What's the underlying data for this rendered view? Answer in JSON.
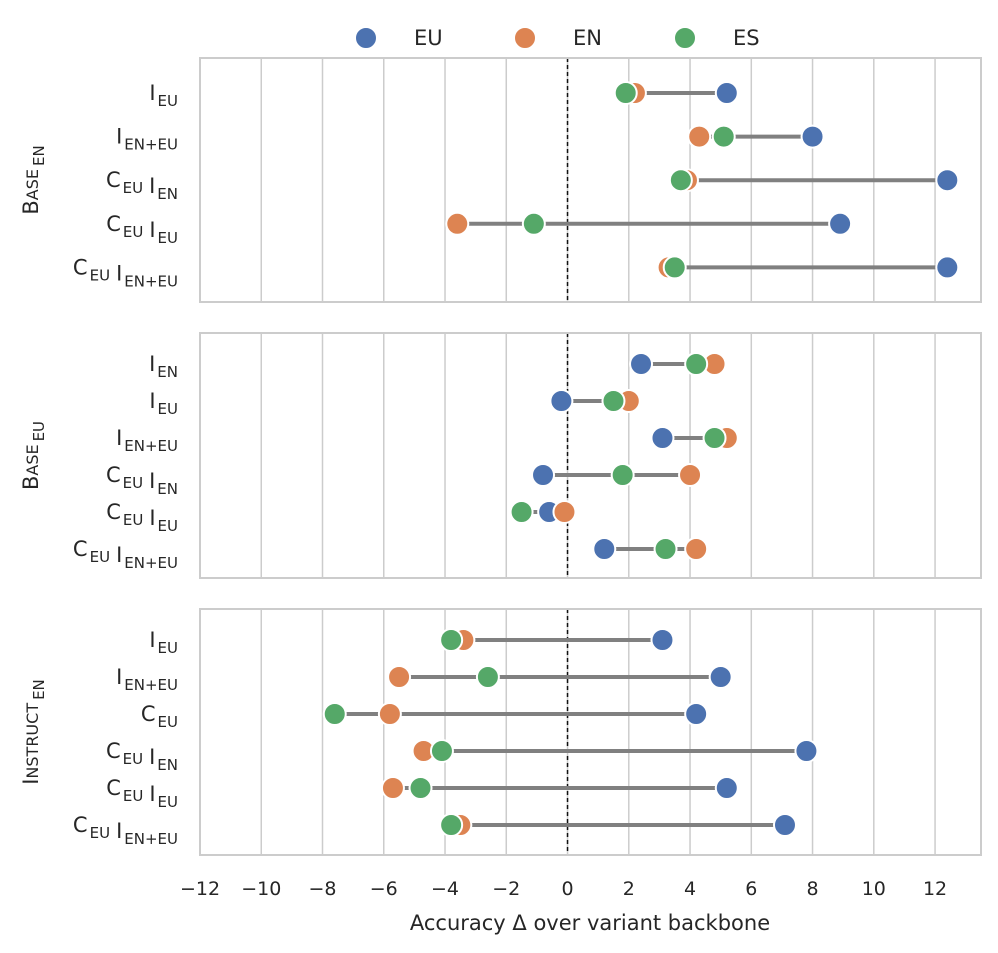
{
  "chart_data": {
    "type": "dumbbell",
    "xlabel": "Accuracy Δ over variant backbone",
    "xlim": [
      -12,
      13.5
    ],
    "xticks": [
      -12,
      -10,
      -8,
      -6,
      -4,
      -2,
      0,
      2,
      4,
      6,
      8,
      10,
      12
    ],
    "xtick_labels": [
      "−12",
      "−10",
      "−8",
      "−6",
      "−4",
      "−2",
      "0",
      "2",
      "4",
      "6",
      "8",
      "10",
      "12"
    ],
    "reference_line": 0,
    "legend": [
      {
        "name": "EU",
        "color": "#4c72b0"
      },
      {
        "name": "EN",
        "color": "#dd8452"
      },
      {
        "name": "ES",
        "color": "#55a868"
      }
    ],
    "panels": [
      {
        "ylabel": {
          "main": "Base",
          "sub": "EN"
        },
        "rows": [
          {
            "label": [
              {
                "m": "I",
                "s": "EU"
              }
            ],
            "EU": 5.2,
            "EN": 2.2,
            "ES": 1.9
          },
          {
            "label": [
              {
                "m": "I",
                "s": "EN+EU"
              }
            ],
            "EU": 8.0,
            "EN": 4.3,
            "ES": 5.1
          },
          {
            "label": [
              {
                "m": "C",
                "s": "EU"
              },
              {
                "m": "I",
                "s": "EN"
              }
            ],
            "EU": 12.4,
            "EN": 3.9,
            "ES": 3.7
          },
          {
            "label": [
              {
                "m": "C",
                "s": "EU"
              },
              {
                "m": "I",
                "s": "EU"
              }
            ],
            "EU": 8.9,
            "EN": -3.6,
            "ES": -1.1
          },
          {
            "label": [
              {
                "m": "C",
                "s": "EU"
              },
              {
                "m": "I",
                "s": "EN+EU"
              }
            ],
            "EU": 12.4,
            "EN": 3.3,
            "ES": 3.5
          }
        ]
      },
      {
        "ylabel": {
          "main": "Base",
          "sub": "EU"
        },
        "rows": [
          {
            "label": [
              {
                "m": "I",
                "s": "EN"
              }
            ],
            "EU": 2.4,
            "EN": 4.8,
            "ES": 4.2
          },
          {
            "label": [
              {
                "m": "I",
                "s": "EU"
              }
            ],
            "EU": -0.2,
            "EN": 2.0,
            "ES": 1.5
          },
          {
            "label": [
              {
                "m": "I",
                "s": "EN+EU"
              }
            ],
            "EU": 3.1,
            "EN": 5.2,
            "ES": 4.8
          },
          {
            "label": [
              {
                "m": "C",
                "s": "EU"
              },
              {
                "m": "I",
                "s": "EN"
              }
            ],
            "EU": -0.8,
            "EN": 4.0,
            "ES": 1.8
          },
          {
            "label": [
              {
                "m": "C",
                "s": "EU"
              },
              {
                "m": "I",
                "s": "EU"
              }
            ],
            "EU": -0.6,
            "EN": -0.1,
            "ES": -1.5
          },
          {
            "label": [
              {
                "m": "C",
                "s": "EU"
              },
              {
                "m": "I",
                "s": "EN+EU"
              }
            ],
            "EU": 1.2,
            "EN": 4.2,
            "ES": 3.2
          }
        ]
      },
      {
        "ylabel": {
          "main": "Instruct",
          "sub": "EN"
        },
        "rows": [
          {
            "label": [
              {
                "m": "I",
                "s": "EU"
              }
            ],
            "EU": 3.1,
            "EN": -3.4,
            "ES": -3.8
          },
          {
            "label": [
              {
                "m": "I",
                "s": "EN+EU"
              }
            ],
            "EU": 5.0,
            "EN": -5.5,
            "ES": -2.6
          },
          {
            "label": [
              {
                "m": "C",
                "s": "EU"
              }
            ],
            "EU": 4.2,
            "EN": -5.8,
            "ES": -7.6
          },
          {
            "label": [
              {
                "m": "C",
                "s": "EU"
              },
              {
                "m": "I",
                "s": "EN"
              }
            ],
            "EU": 7.8,
            "EN": -4.7,
            "ES": -4.1
          },
          {
            "label": [
              {
                "m": "C",
                "s": "EU"
              },
              {
                "m": "I",
                "s": "EU"
              }
            ],
            "EU": 5.2,
            "EN": -5.7,
            "ES": -4.8
          },
          {
            "label": [
              {
                "m": "C",
                "s": "EU"
              },
              {
                "m": "I",
                "s": "EN+EU"
              }
            ],
            "EU": 7.1,
            "EN": -3.5,
            "ES": -3.8
          }
        ]
      }
    ]
  }
}
